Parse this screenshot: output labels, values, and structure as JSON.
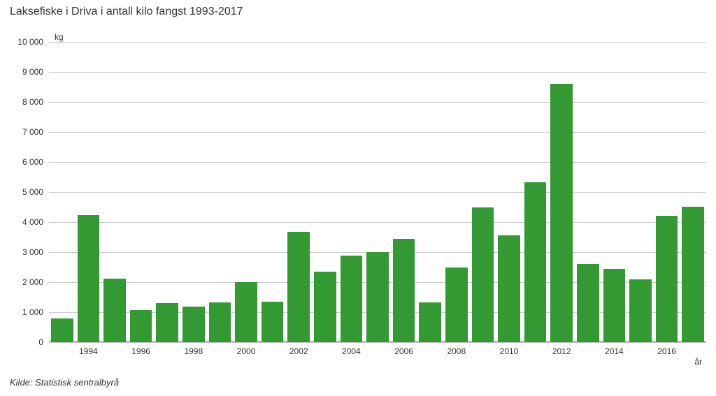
{
  "chart": {
    "type": "bar",
    "title": "Laksefiske i Driva i antall kilo fangst 1993-2017",
    "ylabel": "kg",
    "xlabel": "år",
    "source": "Kilde:  Statistisk sentralbyrå",
    "title_fontsize": 16,
    "label_fontsize": 12,
    "tick_fontsize": 12,
    "background_color": "#ffffff",
    "grid_color": "#cccccc",
    "axis_color": "#666666",
    "bar_color": "#339933",
    "bar_width_ratio": 0.84,
    "ylim": [
      0,
      10000
    ],
    "ytick_step": 1000,
    "years": [
      1993,
      1994,
      1995,
      1996,
      1997,
      1998,
      1999,
      2000,
      2001,
      2002,
      2003,
      2004,
      2005,
      2006,
      2007,
      2008,
      2009,
      2010,
      2011,
      2012,
      2013,
      2014,
      2015,
      2016,
      2017
    ],
    "values": [
      780,
      4230,
      2120,
      1080,
      1300,
      1180,
      1320,
      2000,
      1340,
      3680,
      2340,
      2880,
      3000,
      3440,
      1320,
      2480,
      4480,
      3560,
      5320,
      8600,
      2600,
      2440,
      2100,
      4200,
      4520
    ],
    "xtick_labels": [
      1994,
      1996,
      1998,
      2000,
      2002,
      2004,
      2006,
      2008,
      2010,
      2012,
      2014,
      2016
    ],
    "thousands_separator": " "
  }
}
